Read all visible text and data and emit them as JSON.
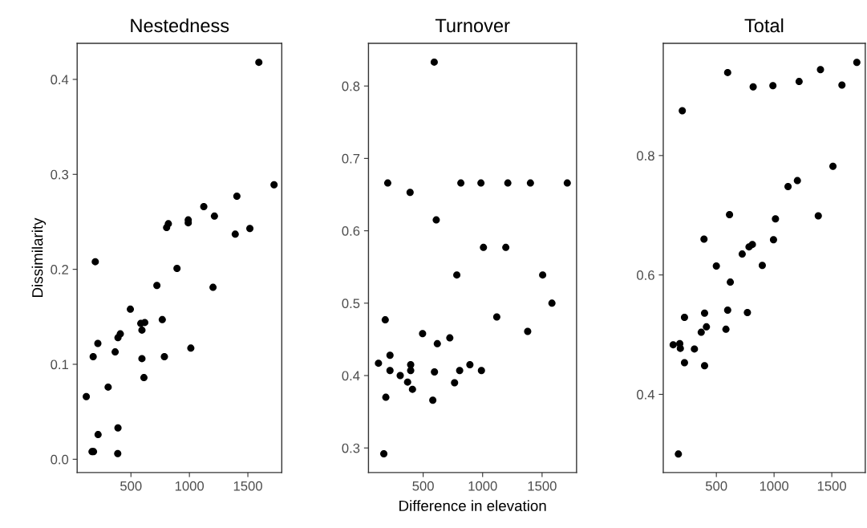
{
  "chart_data": [
    {
      "type": "scatter",
      "title": "Nestedness",
      "ylabel": "Dissimilarity",
      "marker": "circle",
      "color": "#000000",
      "x": [
        118,
        167,
        180,
        195,
        217,
        177,
        219,
        305,
        365,
        389,
        409,
        389,
        387,
        495,
        584,
        618,
        594,
        594,
        611,
        722,
        768,
        786,
        805,
        820,
        894,
        990,
        990,
        1012,
        1123,
        1202,
        1214,
        1392,
        1406,
        1517,
        1594,
        1724
      ],
      "values": [
        0.066,
        0.008,
        0.008,
        0.208,
        0.122,
        0.108,
        0.026,
        0.076,
        0.113,
        0.128,
        0.132,
        0.033,
        0.006,
        0.158,
        0.143,
        0.144,
        0.136,
        0.106,
        0.086,
        0.183,
        0.147,
        0.108,
        0.244,
        0.248,
        0.201,
        0.249,
        0.252,
        0.117,
        0.266,
        0.181,
        0.256,
        0.237,
        0.277,
        0.243,
        0.418,
        0.289
      ],
      "xlim": [
        40,
        1790
      ],
      "xticks": [
        500,
        1000,
        1500
      ],
      "ylim": [
        -0.014,
        0.438
      ],
      "yticks": [
        {
          "value": 0,
          "label": "0.0"
        },
        0.1,
        0.2,
        0.3,
        0.4
      ]
    },
    {
      "type": "scatter",
      "title": "Turnover",
      "xlabel": "Difference in elevation",
      "marker": "circle",
      "color": "#000000",
      "x": [
        124,
        181,
        186,
        169,
        202,
        221,
        221,
        307,
        369,
        395,
        395,
        390,
        410,
        495,
        581,
        595,
        593,
        610,
        619,
        724,
        764,
        783,
        807,
        817,
        893,
        986,
        990,
        1007,
        1119,
        1195,
        1212,
        1379,
        1402,
        1505,
        1583,
        1712
      ],
      "values": [
        0.417,
        0.477,
        0.37,
        0.292,
        0.666,
        0.428,
        0.407,
        0.4,
        0.391,
        0.415,
        0.407,
        0.653,
        0.381,
        0.458,
        0.366,
        0.405,
        0.833,
        0.615,
        0.444,
        0.452,
        0.39,
        0.539,
        0.407,
        0.666,
        0.415,
        0.666,
        0.407,
        0.577,
        0.481,
        0.577,
        0.666,
        0.461,
        0.666,
        0.539,
        0.5,
        0.666
      ],
      "xlim": [
        40,
        1790
      ],
      "xticks": [
        500,
        1000,
        1500
      ],
      "ylim": [
        0.266,
        0.859
      ],
      "yticks": [
        0.3,
        0.4,
        0.5,
        0.6,
        0.7,
        0.8
      ]
    },
    {
      "type": "scatter",
      "title": "Total",
      "marker": "circle",
      "color": "#000000",
      "x": [
        126,
        171,
        183,
        188,
        205,
        224,
        224,
        310,
        369,
        398,
        414,
        398,
        393,
        500,
        583,
        598,
        598,
        614,
        621,
        724,
        769,
        783,
        812,
        819,
        898,
        990,
        995,
        1012,
        1121,
        1202,
        1217,
        1383,
        1402,
        1510,
        1588,
        1717
      ],
      "values": [
        0.483,
        0.3,
        0.485,
        0.477,
        0.875,
        0.529,
        0.453,
        0.476,
        0.504,
        0.536,
        0.513,
        0.448,
        0.66,
        0.615,
        0.509,
        0.541,
        0.939,
        0.701,
        0.588,
        0.635,
        0.537,
        0.647,
        0.651,
        0.915,
        0.616,
        0.917,
        0.659,
        0.694,
        0.748,
        0.758,
        0.924,
        0.699,
        0.944,
        0.782,
        0.918,
        0.956
      ],
      "xlim": [
        40,
        1790
      ],
      "xticks": [
        500,
        1000,
        1500
      ],
      "ylim": [
        0.269,
        0.988
      ],
      "yticks": [
        0.4,
        0.6,
        0.8
      ]
    }
  ]
}
